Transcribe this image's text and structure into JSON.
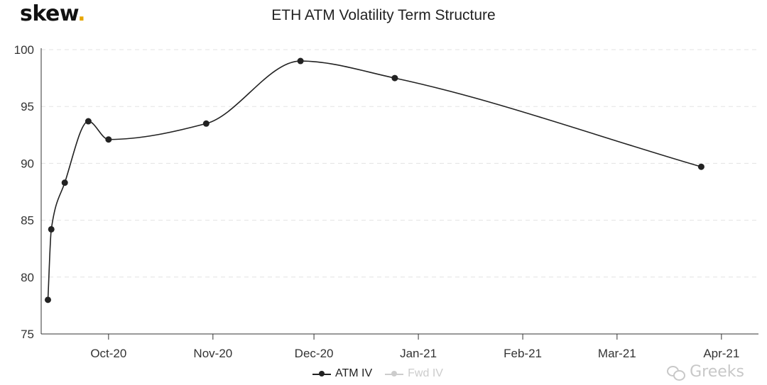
{
  "brand": {
    "name": "skew",
    "dot": "."
  },
  "chart_data": {
    "type": "line",
    "title": "ETH ATM Volatility Term Structure",
    "xlabel": "",
    "ylabel": "",
    "ylim": [
      75,
      100
    ],
    "yticks": [
      75,
      80,
      85,
      90,
      95,
      100
    ],
    "grid": true,
    "legend_position": "bottom-center",
    "xlim": [
      "2020-09-11",
      "2021-04-12"
    ],
    "xticks": [
      {
        "date": "2020-10-01",
        "label": "Oct-20"
      },
      {
        "date": "2020-11-01",
        "label": "Nov-20"
      },
      {
        "date": "2020-12-01",
        "label": "Dec-20"
      },
      {
        "date": "2021-01-01",
        "label": "Jan-21"
      },
      {
        "date": "2021-02-01",
        "label": "Feb-21"
      },
      {
        "date": "2021-03-01",
        "label": "Mar-21"
      },
      {
        "date": "2021-04-01",
        "label": "Apr-21"
      }
    ],
    "series": [
      {
        "name": "ATM IV",
        "color": "#222222",
        "points": [
          {
            "x": "2020-09-13",
            "y": 78.0
          },
          {
            "x": "2020-09-14",
            "y": 84.2
          },
          {
            "x": "2020-09-18",
            "y": 88.3
          },
          {
            "x": "2020-09-25",
            "y": 93.7
          },
          {
            "x": "2020-10-01",
            "y": 92.1
          },
          {
            "x": "2020-10-30",
            "y": 93.5
          },
          {
            "x": "2020-11-27",
            "y": 99.0
          },
          {
            "x": "2020-12-25",
            "y": 97.5
          },
          {
            "x": "2021-03-26",
            "y": 89.7
          }
        ]
      },
      {
        "name": "Fwd IV",
        "color": "#cccccc",
        "hidden": true,
        "points": []
      }
    ]
  },
  "watermark": {
    "text": "Greeks",
    "icon": "wechat-icon"
  }
}
